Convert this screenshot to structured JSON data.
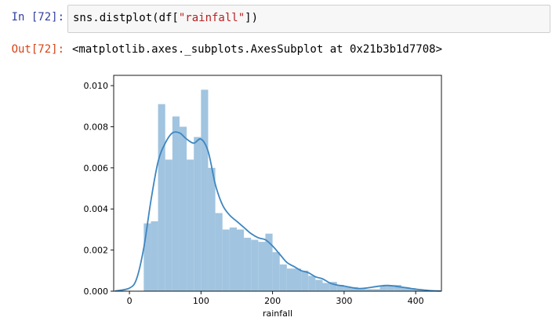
{
  "cell": {
    "in_prompt": "In [72]:",
    "code_prefix": "sns.distplot(df[",
    "code_string": "\"rainfall\"",
    "code_suffix": "])",
    "out_prompt": "Out[72]:",
    "output_text": "<matplotlib.axes._subplots.AxesSubplot at 0x21b3b1d7708>"
  },
  "colors": {
    "bar": "#a1c4e0",
    "kde": "#3e86c0",
    "in_prompt": "#303F9F",
    "out_prompt": "#D84315"
  },
  "chart_data": {
    "type": "bar",
    "title": "",
    "xlabel": "rainfall",
    "ylabel": "",
    "xlim": [
      -22,
      436
    ],
    "ylim": [
      0,
      0.0105
    ],
    "xticks": [
      0,
      100,
      200,
      300,
      400
    ],
    "xtick_labels": [
      "0",
      "100",
      "200",
      "300",
      "400"
    ],
    "yticks": [
      0,
      0.002,
      0.004,
      0.006,
      0.008,
      0.01
    ],
    "ytick_labels": [
      "0.000",
      "0.002",
      "0.004",
      "0.006",
      "0.008",
      "0.010"
    ],
    "grid": false,
    "hist_bin_edges": [
      20,
      30,
      40,
      50,
      60,
      70,
      80,
      90,
      100,
      110,
      120,
      130,
      140,
      150,
      160,
      170,
      180,
      190,
      200,
      210,
      220,
      230,
      240,
      250,
      260,
      270,
      280,
      290,
      300,
      310,
      320,
      330,
      340,
      350,
      360,
      370,
      380,
      390,
      400,
      410,
      420,
      430
    ],
    "hist_values": [
      0.0033,
      0.0034,
      0.0091,
      0.0064,
      0.0085,
      0.008,
      0.0064,
      0.0075,
      0.0098,
      0.006,
      0.0038,
      0.003,
      0.0031,
      0.003,
      0.0026,
      0.0025,
      0.0024,
      0.0028,
      0.0019,
      0.0013,
      0.0011,
      0.0011,
      0.001,
      0.00075,
      0.00055,
      0.0004,
      0.00045,
      0.0003,
      0.0002,
      0.0002,
      0.00015,
      0.0001,
      0.0001,
      0.00025,
      0.0003,
      0.0003,
      0.0002,
      0.00015,
      0.0001,
      5e-05,
      3e-05
    ],
    "kde_x": [
      -20,
      0,
      10,
      20,
      30,
      40,
      50,
      60,
      70,
      80,
      90,
      100,
      110,
      120,
      130,
      140,
      150,
      160,
      170,
      180,
      190,
      200,
      210,
      220,
      230,
      240,
      250,
      260,
      270,
      280,
      290,
      300,
      310,
      320,
      330,
      340,
      350,
      360,
      370,
      380,
      390,
      400,
      420,
      435
    ],
    "kde_y": [
      1e-05,
      0.00015,
      0.0006,
      0.0021,
      0.0044,
      0.0063,
      0.0072,
      0.0077,
      0.0077,
      0.0074,
      0.0072,
      0.0074,
      0.0068,
      0.0052,
      0.0042,
      0.0037,
      0.0034,
      0.0031,
      0.0028,
      0.0026,
      0.0025,
      0.0022,
      0.0018,
      0.0014,
      0.0012,
      0.001,
      0.0009,
      0.0007,
      0.0006,
      0.0004,
      0.0003,
      0.00025,
      0.00018,
      0.00013,
      0.00015,
      0.0002,
      0.00025,
      0.00028,
      0.00025,
      0.0002,
      0.00015,
      0.0001,
      3e-05,
      1e-05
    ]
  }
}
